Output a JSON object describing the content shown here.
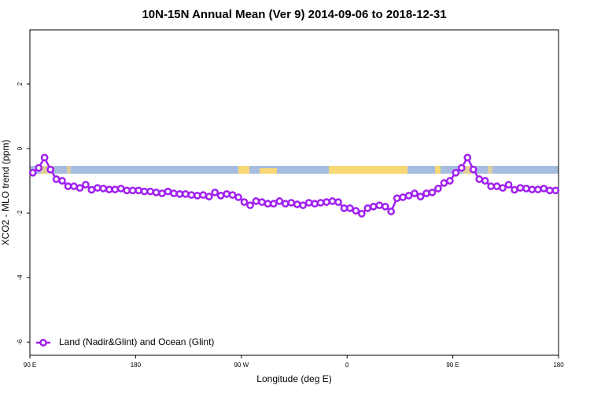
{
  "chart_data": {
    "type": "line",
    "title": "10N-15N Annual Mean (Ver 9)   2014-09-06 to 2018-12-31",
    "x_label": "Longitude (deg E)",
    "y_label": "XCO2 - MLO trend (ppm)",
    "xlim": [
      90,
      540
    ],
    "ylim": [
      -6.41,
      3.68
    ],
    "xticks": [
      {
        "value": 90,
        "label": "90 E"
      },
      180,
      {
        "value": 270,
        "label": "90 W"
      },
      {
        "value": 360,
        "label": "0"
      },
      {
        "value": 450,
        "label": "90 E"
      },
      {
        "value": 540,
        "label": "180"
      }
    ],
    "yticks": [
      -6,
      -4,
      -2,
      0,
      2
    ],
    "legend": "bottom-left",
    "x": [
      92.5,
      97.5,
      102.5,
      107.5,
      112.5,
      117.5,
      122.5,
      127.5,
      132.5,
      137.5,
      142.5,
      147.5,
      152.5,
      157.5,
      162.5,
      167.5,
      172.5,
      177.5,
      182.5,
      187.5,
      192.5,
      197.5,
      202.5,
      207.5,
      212.5,
      217.5,
      222.5,
      227.5,
      232.5,
      237.5,
      242.5,
      247.5,
      252.5,
      257.5,
      262.5,
      267.5,
      272.5,
      277.5,
      282.5,
      287.5,
      292.5,
      297.5,
      302.5,
      307.5,
      312.5,
      317.5,
      322.5,
      327.5,
      332.5,
      337.5,
      342.5,
      347.5,
      352.5,
      357.5,
      362.5,
      367.5,
      372.5,
      377.5,
      382.5,
      387.5,
      392.5,
      397.5,
      402.5,
      407.5,
      412.5,
      417.5,
      422.5,
      427.5,
      432.5,
      437.5,
      442.5,
      447.5,
      452.5,
      457.5,
      462.5,
      467.5,
      472.5,
      477.5,
      482.5,
      487.5,
      492.5,
      497.5,
      502.5,
      507.5,
      512.5,
      517.5,
      522.5,
      527.5,
      532.5,
      537.5
    ],
    "series": [
      {
        "name": "Land (Nadir&Glint) and Ocean (Glint)",
        "color": "#a020f0",
        "values": [
          -0.75,
          -0.6,
          -0.28,
          -0.65,
          -0.95,
          -1.0,
          -1.17,
          -1.17,
          -1.22,
          -1.12,
          -1.28,
          -1.22,
          -1.24,
          -1.27,
          -1.27,
          -1.24,
          -1.3,
          -1.3,
          -1.3,
          -1.33,
          -1.33,
          -1.36,
          -1.39,
          -1.33,
          -1.39,
          -1.41,
          -1.41,
          -1.44,
          -1.46,
          -1.44,
          -1.49,
          -1.36,
          -1.46,
          -1.41,
          -1.44,
          -1.51,
          -1.66,
          -1.76,
          -1.63,
          -1.66,
          -1.71,
          -1.71,
          -1.63,
          -1.71,
          -1.68,
          -1.73,
          -1.76,
          -1.68,
          -1.71,
          -1.68,
          -1.66,
          -1.63,
          -1.66,
          -1.85,
          -1.85,
          -1.93,
          -2.02,
          -1.85,
          -1.8,
          -1.76,
          -1.8,
          -1.95,
          -1.54,
          -1.51,
          -1.46,
          -1.39,
          -1.49,
          -1.39,
          -1.36,
          -1.24,
          -1.07,
          -1.0,
          -0.75,
          -0.6,
          -0.28,
          -0.65,
          -0.95,
          -1.0,
          -1.17,
          -1.17,
          -1.22,
          -1.12,
          -1.28,
          -1.22,
          -1.24,
          -1.27,
          -1.27,
          -1.24,
          -1.3,
          -1.3
        ]
      }
    ]
  }
}
